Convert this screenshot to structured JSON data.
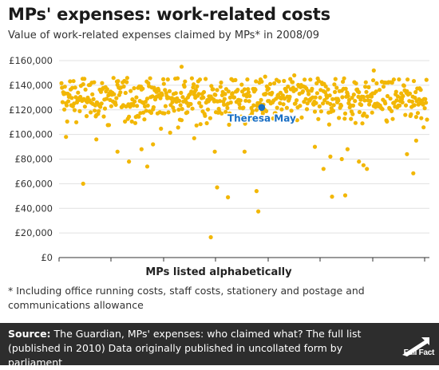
{
  "header": {
    "title": "MPs' expenses: work-related costs",
    "subtitle": "Value of work-related expenses claimed by MPs* in 2008/09"
  },
  "footnote": "* Including office running costs, staff costs, stationery and postage and communications allowance",
  "source": {
    "label": "Source:",
    "text": "The Guardian, MPs' expenses: who claimed what? The full list (published in 2010) Data originally published in uncollated form by parliament"
  },
  "logo": {
    "text": "Full Fact"
  },
  "colors": {
    "point": "#f2b705",
    "highlight": "#1a6fc4",
    "grid": "#e0e0e0",
    "axis": "#333333",
    "footer_bg": "#2d2d2d"
  },
  "chart_data": {
    "type": "scatter",
    "xlabel": "MPs listed alphabetically",
    "ylabel": "",
    "ylim": [
      0,
      160000
    ],
    "yticks": [
      0,
      20000,
      40000,
      60000,
      80000,
      100000,
      120000,
      140000,
      160000
    ],
    "ytick_labels": [
      "£0",
      "£20,000",
      "£40,000",
      "£60,000",
      "£80,000",
      "£100,000",
      "£120,000",
      "£140,000",
      "£160,000"
    ],
    "grid": "horizontal",
    "highlight": {
      "label": "Theresa May",
      "x": 350,
      "y": 122000
    },
    "x_count": 640,
    "outliers": [
      {
        "x": 38,
        "y": 60000
      },
      {
        "x": 150,
        "y": 74000
      },
      {
        "x": 118,
        "y": 78000
      },
      {
        "x": 261,
        "y": 16500
      },
      {
        "x": 272,
        "y": 57000
      },
      {
        "x": 291,
        "y": 49000
      },
      {
        "x": 341,
        "y": 54000
      },
      {
        "x": 344,
        "y": 37500
      },
      {
        "x": 458,
        "y": 72000
      },
      {
        "x": 473,
        "y": 49500
      },
      {
        "x": 496,
        "y": 50500
      },
      {
        "x": 534,
        "y": 72000
      },
      {
        "x": 615,
        "y": 68500
      },
      {
        "x": 210,
        "y": 155000
      },
      {
        "x": 546,
        "y": 152000
      },
      {
        "x": 407,
        "y": 148000
      },
      {
        "x": 356,
        "y": 147000
      },
      {
        "x": 490,
        "y": 80000
      },
      {
        "x": 500,
        "y": 88000
      },
      {
        "x": 604,
        "y": 84000
      },
      {
        "x": 98,
        "y": 86000
      },
      {
        "x": 160,
        "y": 92000
      },
      {
        "x": 320,
        "y": 86000
      },
      {
        "x": 268,
        "y": 86000
      },
      {
        "x": 443,
        "y": 90000
      },
      {
        "x": 520,
        "y": 78000
      },
      {
        "x": 528,
        "y": 75000
      },
      {
        "x": 620,
        "y": 95000
      },
      {
        "x": 140,
        "y": 88000
      },
      {
        "x": 61,
        "y": 96000
      },
      {
        "x": 8,
        "y": 98000
      },
      {
        "x": 232,
        "y": 97000
      },
      {
        "x": 470,
        "y": 82000
      }
    ]
  }
}
